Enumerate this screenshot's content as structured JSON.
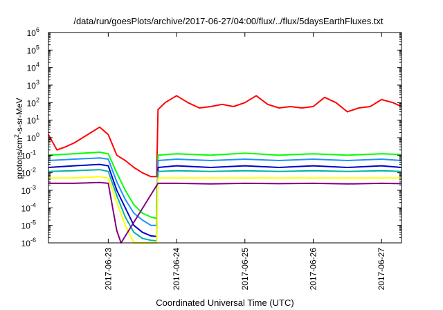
{
  "chart_data": {
    "type": "line",
    "title": "/data/run/goesPlots/archive/2017-06-27/04:00/flux/../flux/5daysEarthFluxes.txt",
    "xlabel": "Coordinated Universal Time (UTC)",
    "ylabel_parts": {
      "pre": "protons/cm",
      "sup": "2",
      "post": "-s-sr-MeV"
    },
    "y_scale": "log",
    "ylim": [
      1e-06,
      1000000.0
    ],
    "xlim": [
      "2017-06-22T03:00",
      "2017-06-27T07:00"
    ],
    "x_ticks": [
      "2017-06-23",
      "2017-06-24",
      "2017-06-25",
      "2017-06-26",
      "2017-06-27"
    ],
    "y_ticks": [
      {
        "base": "10",
        "exp": "6"
      },
      {
        "base": "10",
        "exp": "5"
      },
      {
        "base": "10",
        "exp": "4"
      },
      {
        "base": "10",
        "exp": "3"
      },
      {
        "base": "10",
        "exp": "2"
      },
      {
        "base": "10",
        "exp": "1"
      },
      {
        "base": "10",
        "exp": "0"
      },
      {
        "base": "10",
        "exp": "-1"
      },
      {
        "base": "10",
        "exp": "-2"
      },
      {
        "base": "10",
        "exp": "-3"
      },
      {
        "base": "10",
        "exp": "-4"
      },
      {
        "base": "10",
        "exp": "-5"
      },
      {
        "base": "10",
        "exp": "-6"
      }
    ],
    "grid": false,
    "legend": "none",
    "series": [
      {
        "color": "#ff0000",
        "x": [
          "2017-06-22T03:00",
          "2017-06-22T06:00",
          "2017-06-22T09:00",
          "2017-06-22T12:00",
          "2017-06-22T15:00",
          "2017-06-22T18:00",
          "2017-06-22T21:00",
          "2017-06-23T00:00",
          "2017-06-23T03:00",
          "2017-06-23T06:00",
          "2017-06-23T09:00",
          "2017-06-23T12:00",
          "2017-06-23T15:00",
          "2017-06-23T17:00",
          "2017-06-23T17:30",
          "2017-06-23T20:00",
          "2017-06-24T00:00",
          "2017-06-24T04:00",
          "2017-06-24T08:00",
          "2017-06-24T12:00",
          "2017-06-24T16:00",
          "2017-06-24T20:00",
          "2017-06-25T00:00",
          "2017-06-25T04:00",
          "2017-06-25T08:00",
          "2017-06-25T12:00",
          "2017-06-25T16:00",
          "2017-06-25T20:00",
          "2017-06-26T00:00",
          "2017-06-26T04:00",
          "2017-06-26T08:00",
          "2017-06-26T12:00",
          "2017-06-26T16:00",
          "2017-06-26T20:00",
          "2017-06-27T00:00",
          "2017-06-27T04:00",
          "2017-06-27T07:00"
        ],
        "y": [
          1.5,
          0.2,
          0.3,
          0.5,
          1.0,
          2.0,
          4.0,
          1.5,
          0.1,
          0.05,
          0.02,
          0.01,
          0.006,
          0.006,
          40,
          100,
          250,
          100,
          50,
          60,
          80,
          60,
          100,
          250,
          80,
          50,
          60,
          50,
          60,
          200,
          100,
          30,
          50,
          60,
          150,
          100,
          60
        ]
      },
      {
        "color": "#00ff00",
        "x": [
          "2017-06-22T03:00",
          "2017-06-22T12:00",
          "2017-06-22T21:00",
          "2017-06-23T00:00",
          "2017-06-23T03:00",
          "2017-06-23T06:00",
          "2017-06-23T09:00",
          "2017-06-23T12:00",
          "2017-06-23T15:00",
          "2017-06-23T17:00",
          "2017-06-23T17:30",
          "2017-06-24T00:00",
          "2017-06-24T12:00",
          "2017-06-25T00:00",
          "2017-06-25T12:00",
          "2017-06-26T00:00",
          "2017-06-26T12:00",
          "2017-06-27T00:00",
          "2017-06-27T07:00"
        ],
        "y": [
          0.1,
          0.12,
          0.15,
          0.12,
          0.01,
          0.001,
          0.00015,
          5e-05,
          3e-05,
          2.5e-05,
          0.1,
          0.12,
          0.1,
          0.13,
          0.1,
          0.12,
          0.1,
          0.12,
          0.11
        ]
      },
      {
        "color": "#1e90ff",
        "x": [
          "2017-06-22T03:00",
          "2017-06-22T12:00",
          "2017-06-22T21:00",
          "2017-06-23T00:00",
          "2017-06-23T03:00",
          "2017-06-23T06:00",
          "2017-06-23T09:00",
          "2017-06-23T12:00",
          "2017-06-23T15:00",
          "2017-06-23T17:00",
          "2017-06-23T17:30",
          "2017-06-24T00:00",
          "2017-06-24T12:00",
          "2017-06-25T00:00",
          "2017-06-25T12:00",
          "2017-06-26T00:00",
          "2017-06-26T12:00",
          "2017-06-27T00:00",
          "2017-06-27T07:00"
        ],
        "y": [
          0.05,
          0.06,
          0.07,
          0.06,
          0.003,
          0.0003,
          5e-05,
          2e-05,
          1e-05,
          1e-05,
          0.05,
          0.06,
          0.05,
          0.06,
          0.05,
          0.06,
          0.05,
          0.06,
          0.05
        ]
      },
      {
        "color": "#0000cd",
        "x": [
          "2017-06-22T03:00",
          "2017-06-22T12:00",
          "2017-06-22T21:00",
          "2017-06-23T00:00",
          "2017-06-23T03:00",
          "2017-06-23T06:00",
          "2017-06-23T09:00",
          "2017-06-23T12:00",
          "2017-06-23T15:00",
          "2017-06-23T17:00",
          "2017-06-23T17:30",
          "2017-06-24T00:00",
          "2017-06-24T12:00",
          "2017-06-25T00:00",
          "2017-06-25T12:00",
          "2017-06-26T00:00",
          "2017-06-26T12:00",
          "2017-06-27T00:00",
          "2017-06-27T07:00"
        ],
        "y": [
          0.02,
          0.025,
          0.03,
          0.025,
          0.001,
          0.0001,
          1e-05,
          4e-06,
          2.5e-06,
          2.3e-06,
          0.02,
          0.025,
          0.02,
          0.025,
          0.02,
          0.025,
          0.02,
          0.025,
          0.02
        ]
      },
      {
        "color": "#00b3a0",
        "x": [
          "2017-06-22T03:00",
          "2017-06-22T12:00",
          "2017-06-22T21:00",
          "2017-06-23T00:00",
          "2017-06-23T03:00",
          "2017-06-23T06:00",
          "2017-06-23T09:00",
          "2017-06-23T12:00",
          "2017-06-23T15:00",
          "2017-06-23T17:00",
          "2017-06-23T17:30",
          "2017-06-24T00:00",
          "2017-06-24T12:00",
          "2017-06-25T00:00",
          "2017-06-25T12:00",
          "2017-06-26T00:00",
          "2017-06-26T12:00",
          "2017-06-27T00:00",
          "2017-06-27T07:00"
        ],
        "y": [
          0.012,
          0.013,
          0.015,
          0.012,
          0.0005,
          3e-05,
          4e-06,
          1.8e-06,
          1.4e-06,
          1.3e-06,
          0.012,
          0.013,
          0.012,
          0.013,
          0.012,
          0.013,
          0.012,
          0.013,
          0.012
        ]
      },
      {
        "color": "#ffff00",
        "x": [
          "2017-06-22T03:00",
          "2017-06-22T12:00",
          "2017-06-22T21:00",
          "2017-06-23T00:00",
          "2017-06-23T03:00",
          "2017-06-23T06:00",
          "2017-06-23T09:00",
          "2017-06-23T12:00",
          "2017-06-23T15:00",
          "2017-06-23T17:00",
          "2017-06-23T17:30",
          "2017-06-24T00:00",
          "2017-06-24T12:00",
          "2017-06-25T00:00",
          "2017-06-25T12:00",
          "2017-06-26T00:00",
          "2017-06-26T12:00",
          "2017-06-27T00:00",
          "2017-06-27T07:00"
        ],
        "y": [
          0.005,
          0.005,
          0.006,
          0.005,
          0.0002,
          1e-05,
          1e-06,
          1e-06,
          1e-06,
          1e-06,
          0.005,
          0.005,
          0.005,
          0.005,
          0.005,
          0.005,
          0.005,
          0.005,
          0.005
        ]
      },
      {
        "color": "#800080",
        "x": [
          "2017-06-22T03:00",
          "2017-06-22T12:00",
          "2017-06-22T21:00",
          "2017-06-23T00:00",
          "2017-06-23T03:00",
          "2017-06-23T04:30",
          "2017-06-23T17:30",
          "2017-06-24T00:00",
          "2017-06-24T12:00",
          "2017-06-25T00:00",
          "2017-06-25T12:00",
          "2017-06-26T00:00",
          "2017-06-26T12:00",
          "2017-06-27T00:00",
          "2017-06-27T07:00"
        ],
        "y": [
          0.0025,
          0.0025,
          0.0028,
          0.0025,
          5e-06,
          1e-06,
          0.0025,
          0.0025,
          0.0023,
          0.0025,
          0.0024,
          0.0025,
          0.0023,
          0.0025,
          0.0024
        ]
      }
    ]
  }
}
